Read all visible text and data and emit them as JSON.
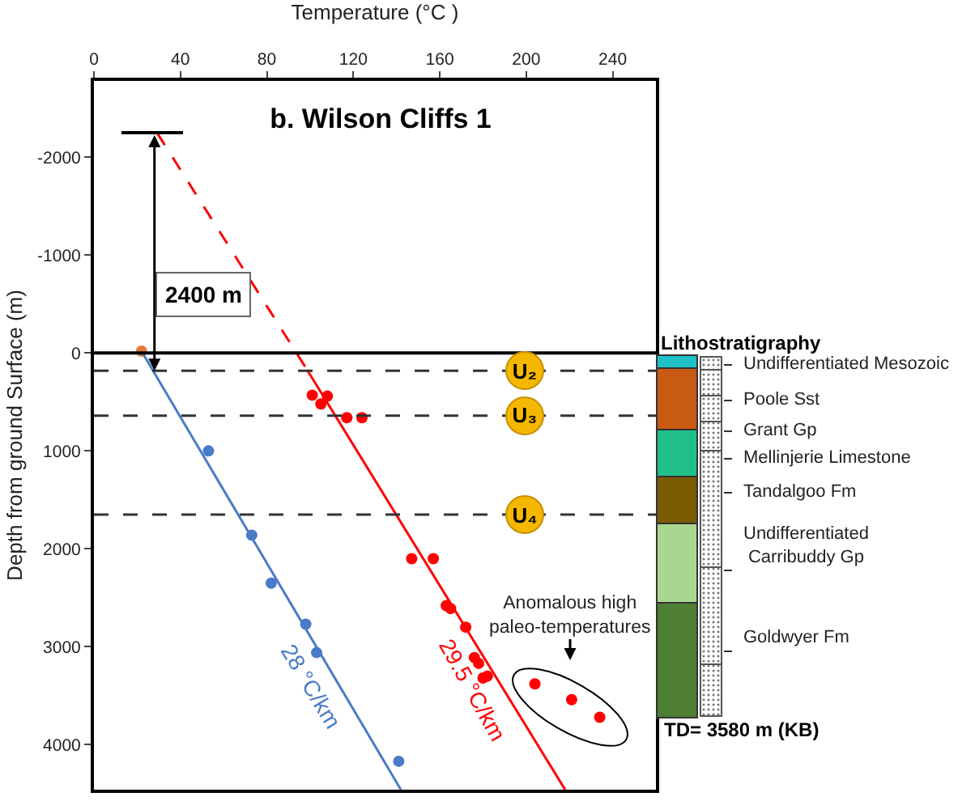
{
  "chart_data": {
    "type": "scatter",
    "title": "b. Wilson Cliffs 1",
    "xlabel": "Temperature (°C )",
    "ylabel": "Depth from ground Surface (m)",
    "xlim": [
      0,
      260
    ],
    "xticks": [
      0,
      40,
      80,
      120,
      160,
      200,
      240
    ],
    "ylim": [
      4460,
      -2780
    ],
    "yticks": [
      -2000,
      -1000,
      0,
      1000,
      2000,
      3000,
      4000
    ],
    "grid": false,
    "legend": false,
    "marker": "circle",
    "series": [
      {
        "color": "#e07b39",
        "x": [
          22
        ],
        "values": [
          -20
        ]
      },
      {
        "color": "#4a7bc8",
        "x": [
          53,
          73,
          82,
          98,
          103,
          141
        ],
        "values": [
          1000,
          1860,
          2350,
          2770,
          3060,
          4170
        ]
      },
      {
        "color": "#ff0000",
        "x": [
          101,
          105,
          108,
          117,
          124,
          147,
          157,
          163,
          165,
          172,
          176,
          178,
          180,
          182,
          204,
          221,
          234
        ],
        "values": [
          430,
          520,
          440,
          660,
          660,
          2100,
          2100,
          2580,
          2610,
          2800,
          3110,
          3170,
          3320,
          3300,
          3380,
          3540,
          3720
        ]
      },
      {
        "type": "line",
        "name": "28 °C/km",
        "color": "#4a7bc8",
        "marker": "none",
        "x": [
          22.5,
          142
        ],
        "values": [
          0,
          4460
        ]
      },
      {
        "type": "line",
        "name": "29.5 °C/km",
        "color": "#ff0000",
        "marker": "none",
        "x": [
          98.6,
          218
        ],
        "values": [
          170,
          4460
        ]
      },
      {
        "type": "line",
        "color": "#ff0000",
        "marker": "none",
        "line_style": "dashed",
        "x": [
          29.2,
          98.6
        ],
        "values": [
          -2250,
          170
        ]
      }
    ],
    "ref_lines": [
      {
        "axis": "y",
        "value": 0,
        "color": "#000000",
        "line_style": "solid"
      },
      {
        "axis": "y",
        "value": 180,
        "label": "U₂",
        "color": "#333333",
        "line_style": "dashed"
      },
      {
        "axis": "y",
        "value": 640,
        "label": "U₃",
        "color": "#333333",
        "line_style": "dashed"
      },
      {
        "axis": "y",
        "value": 1650,
        "label": "U₄",
        "color": "#333333",
        "line_style": "dashed"
      }
    ],
    "annotations": [
      "2400 m",
      "Anomalous high\npaleo-temperatures",
      "Lithostratigraphy",
      "Undifferentiated Mesozoic",
      "Poole Sst",
      "Grant Gp",
      "Mellinjerie Limestone",
      "Tandalgoo Fm",
      "Undifferentiated\nCarribuddy Gp",
      "Goldwyer Fm",
      "TD= 3580 m (KB)"
    ]
  }
}
